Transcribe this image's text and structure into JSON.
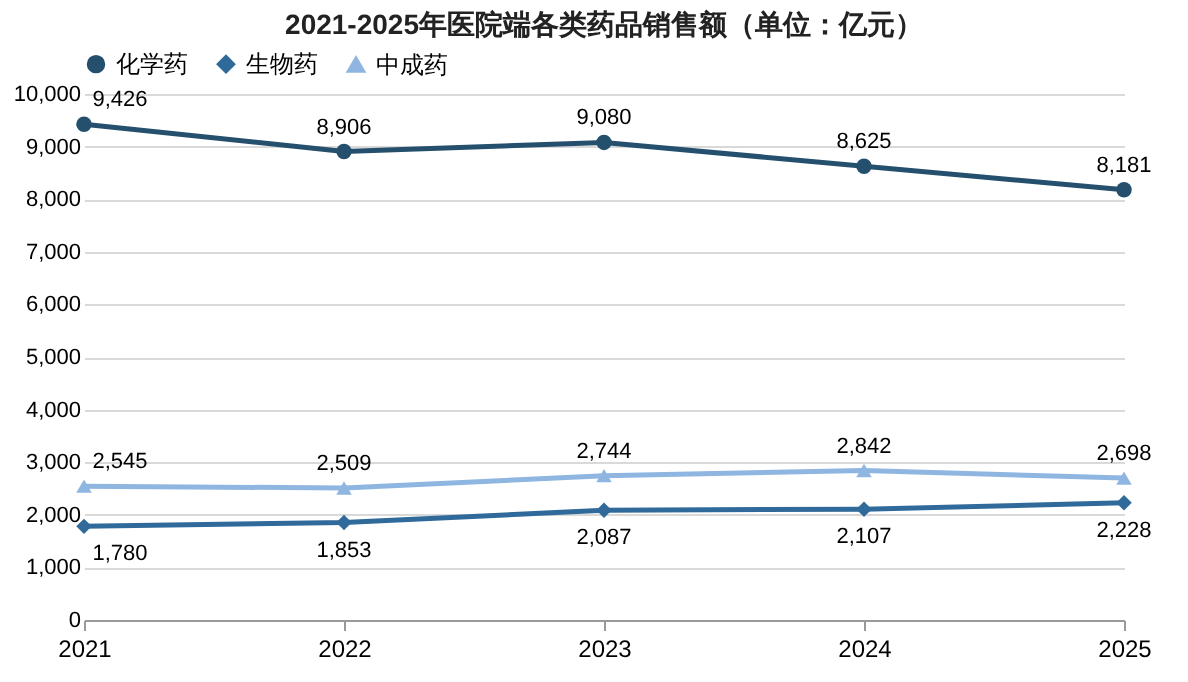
{
  "chart_data": {
    "type": "line",
    "title": "2021-2025年医院端各类药品销售额（单位：亿元）",
    "categories": [
      "2021",
      "2022",
      "2023",
      "2024",
      "2025"
    ],
    "series": [
      {
        "name": "化学药",
        "color": "#24506e",
        "marker": "circle",
        "values": [
          9426,
          8906,
          9080,
          8625,
          8181
        ],
        "value_labels": [
          "9,426",
          "8,906",
          "9,080",
          "8,625",
          "8,181"
        ]
      },
      {
        "name": "生物药",
        "color": "#2f6a9a",
        "marker": "diamond",
        "values": [
          1780,
          1853,
          2087,
          2107,
          2228
        ],
        "value_labels": [
          "1,780",
          "1,853",
          "2,087",
          "2,107",
          "2,228"
        ]
      },
      {
        "name": "中成药",
        "color": "#8fb6e0",
        "marker": "triangle",
        "values": [
          2545,
          2509,
          2744,
          2842,
          2698
        ],
        "value_labels": [
          "2,545",
          "2,509",
          "2,744",
          "2,842",
          "2,698"
        ]
      }
    ],
    "ylim": [
      0,
      10000
    ],
    "yticks": [
      0,
      {
        "value": 1000,
        "label": "1,000"
      },
      {
        "value": 2000,
        "label": "2,000"
      },
      {
        "value": 3000,
        "label": "3,000"
      },
      {
        "value": 4000,
        "label": "4,000"
      },
      {
        "value": 5000,
        "label": "5,000"
      },
      {
        "value": 6000,
        "label": "6,000"
      },
      {
        "value": 7000,
        "label": "7,000"
      },
      {
        "value": 8000,
        "label": "8,000"
      },
      {
        "value": 9000,
        "label": "9,000"
      },
      {
        "value": 10000,
        "label": "10,000"
      }
    ],
    "grid": "y",
    "legend": "top"
  }
}
